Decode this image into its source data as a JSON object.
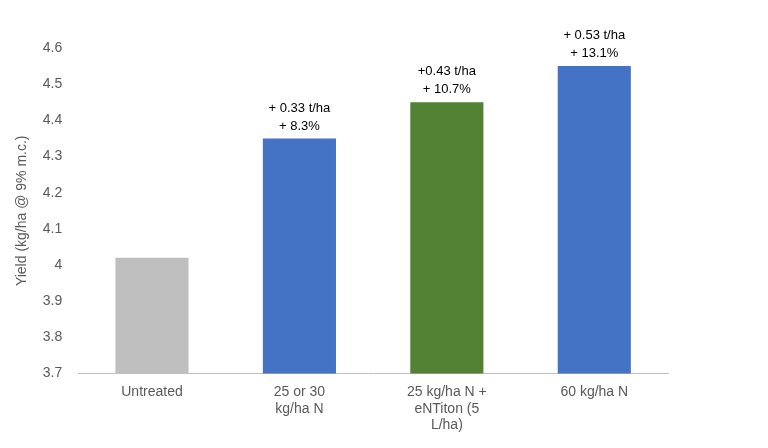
{
  "chart_data": {
    "type": "bar",
    "categories": [
      "Untreated",
      "25 or 30 kg/ha N",
      "25 kg/ha N + eNTiton (5 L/ha)",
      "60 kg/ha N"
    ],
    "values": [
      4.02,
      4.35,
      4.45,
      4.55
    ],
    "colors": [
      "#bfbfbf",
      "#4472c4",
      "#548235",
      "#4472c4"
    ],
    "y_label": "Yield (kg/ha @ 9% m.c.)",
    "ylim": [
      3.7,
      4.6
    ],
    "yticks": [
      3.7,
      3.8,
      3.9,
      4,
      4.1,
      4.2,
      4.3,
      4.4,
      4.5,
      4.6
    ],
    "grid": false,
    "annotations": [
      null,
      [
        "+ 0.33 t/ha",
        "+ 8.3%"
      ],
      [
        "+0.43 t/ha",
        "+ 10.7%"
      ],
      [
        "+ 0.53 t/ha",
        "+ 13.1%"
      ]
    ]
  }
}
